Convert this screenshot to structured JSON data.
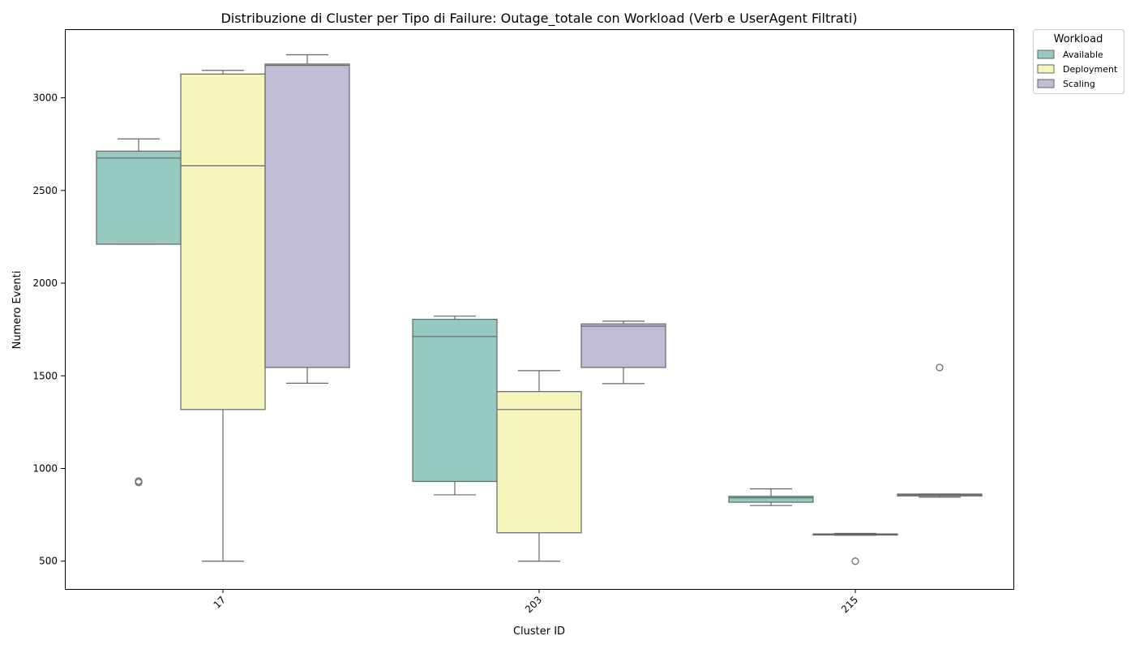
{
  "chart_data": {
    "type": "boxplot",
    "title": "Distribuzione di Cluster per Tipo di Failure: Outage_totale con Workload (Verb e UserAgent Filtrati)",
    "xlabel": "Cluster ID",
    "ylabel": "Numero Eventi",
    "categories": [
      "17",
      "203",
      "215"
    ],
    "yticks": [
      500,
      1000,
      1500,
      2000,
      2500,
      3000
    ],
    "ylim": [
      350,
      3370
    ],
    "grid": false,
    "legend": {
      "title": "Workload",
      "placement": "outside-top-right",
      "entries": [
        "Available",
        "Deployment",
        "Scaling"
      ]
    },
    "series": [
      {
        "name": "Available",
        "color": "#96cac1",
        "boxes": [
          {
            "category": "17",
            "whisker_low": 2210,
            "q1": 2210,
            "median": 2675,
            "q3": 2712,
            "whisker_high": 2778,
            "outliers": [
              925,
              932
            ]
          },
          {
            "category": "203",
            "whisker_low": 858,
            "q1": 930,
            "median": 1712,
            "q3": 1805,
            "whisker_high": 1822,
            "outliers": []
          },
          {
            "category": "215",
            "whisker_low": 800,
            "q1": 818,
            "median": 842,
            "q3": 850,
            "whisker_high": 890,
            "outliers": []
          }
        ]
      },
      {
        "name": "Deployment",
        "color": "#f6f6bc",
        "boxes": [
          {
            "category": "17",
            "whisker_low": 500,
            "q1": 1318,
            "median": 2633,
            "q3": 3128,
            "whisker_high": 3148,
            "outliers": []
          },
          {
            "category": "203",
            "whisker_low": 500,
            "q1": 653,
            "median": 1318,
            "q3": 1415,
            "whisker_high": 1528,
            "outliers": []
          },
          {
            "category": "215",
            "whisker_low": 640,
            "q1": 641,
            "median": 644,
            "q3": 647,
            "whisker_high": 650,
            "outliers": [
              500
            ]
          }
        ]
      },
      {
        "name": "Scaling",
        "color": "#c0bcd6",
        "boxes": [
          {
            "category": "17",
            "whisker_low": 1460,
            "q1": 1545,
            "median": 3175,
            "q3": 3182,
            "whisker_high": 3232,
            "outliers": []
          },
          {
            "category": "203",
            "whisker_low": 1458,
            "q1": 1545,
            "median": 1768,
            "q3": 1780,
            "whisker_high": 1795,
            "outliers": []
          },
          {
            "category": "215",
            "whisker_low": 845,
            "q1": 852,
            "median": 858,
            "q3": 862,
            "whisker_high": 862,
            "outliers": [
              1545
            ]
          }
        ]
      }
    ]
  }
}
